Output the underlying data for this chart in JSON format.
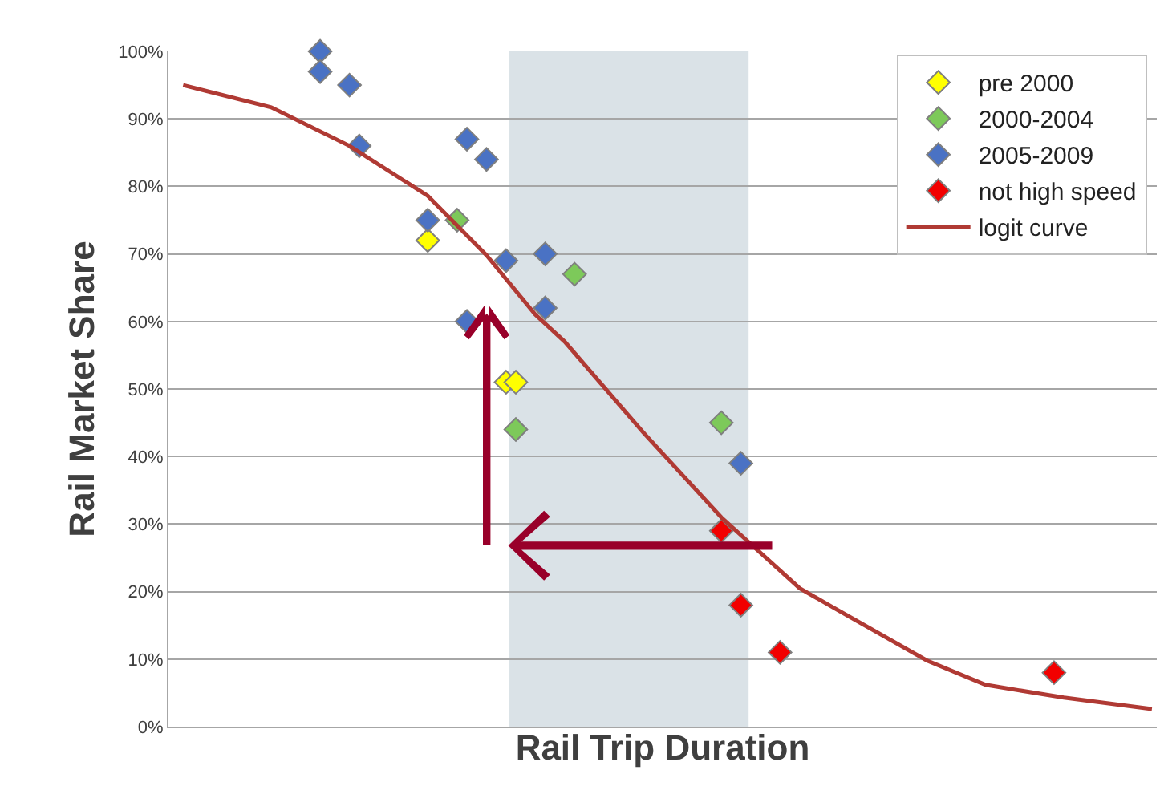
{
  "chart_data": {
    "type": "scatter",
    "xlabel": "Rail Trip Duration",
    "ylabel": "Rail Market Share",
    "categories": [
      null,
      null,
      null,
      null,
      null,
      null,
      null,
      null,
      null,
      null,
      null,
      null,
      null,
      null,
      null,
      null,
      null,
      null,
      null,
      null,
      null,
      null,
      null,
      null,
      null,
      null,
      null,
      null,
      null,
      null,
      null,
      null,
      null,
      null,
      null,
      null,
      null,
      null,
      null,
      null,
      null,
      null,
      null,
      null,
      null,
      null,
      null,
      null,
      null,
      null,
      null,
      null,
      null,
      null,
      null,
      null,
      null,
      null,
      null,
      null,
      null,
      null,
      null,
      null,
      null,
      null,
      null,
      null,
      null,
      null,
      null,
      null,
      null,
      null,
      null,
      null,
      null,
      null,
      null,
      null,
      null,
      null,
      null,
      null,
      null,
      null,
      null,
      null,
      null,
      null,
      null,
      null,
      null,
      null,
      null,
      null,
      null,
      null,
      null,
      null,
      null
    ],
    "ylim": [
      0,
      100
    ],
    "yticks": [
      {
        "value": 0,
        "label": "0%"
      },
      {
        "value": 10,
        "label": "10%"
      },
      {
        "value": 20,
        "label": "20%"
      },
      {
        "value": 30,
        "label": "30%"
      },
      {
        "value": 40,
        "label": "40%"
      },
      {
        "value": 50,
        "label": "50%"
      },
      {
        "value": 60,
        "label": "60%"
      },
      {
        "value": 70,
        "label": "70%"
      },
      {
        "value": 80,
        "label": "80%"
      },
      {
        "value": 90,
        "label": "90%"
      },
      {
        "value": 100,
        "label": "100%"
      }
    ],
    "grid": "y",
    "legend": "top right",
    "marker": "diamond",
    "series": [
      {
        "name": "pre 2000",
        "color": "#ffff00",
        "values": [
          null,
          null,
          null,
          null,
          null,
          null,
          null,
          null,
          null,
          null,
          null,
          null,
          null,
          null,
          null,
          null,
          null,
          null,
          null,
          null,
          null,
          null,
          null,
          null,
          null,
          null,
          72,
          null,
          null,
          null,
          null,
          null,
          null,
          null,
          51,
          51,
          null,
          null,
          null,
          null,
          null,
          null,
          null,
          null,
          null,
          null,
          null,
          null,
          null,
          null,
          null,
          null,
          null,
          null,
          null,
          null,
          null,
          null,
          null,
          null,
          null,
          null,
          null,
          null,
          null,
          null,
          null,
          null,
          null,
          null,
          null,
          null,
          null,
          null,
          null,
          null,
          null,
          null,
          null,
          null,
          null,
          null,
          null,
          null,
          null,
          null,
          null,
          null,
          null,
          null,
          null,
          null,
          null,
          null,
          null,
          null,
          null,
          null,
          null,
          null,
          null
        ]
      },
      {
        "name": "2000-2004",
        "color": "#7dc95a",
        "values": [
          null,
          null,
          null,
          null,
          null,
          null,
          null,
          null,
          null,
          null,
          null,
          null,
          null,
          null,
          null,
          null,
          null,
          null,
          null,
          null,
          null,
          null,
          null,
          null,
          null,
          null,
          null,
          null,
          null,
          75,
          null,
          null,
          null,
          null,
          null,
          44,
          null,
          null,
          null,
          null,
          null,
          67,
          null,
          null,
          null,
          null,
          null,
          null,
          null,
          null,
          null,
          null,
          null,
          null,
          null,
          null,
          45,
          null,
          null,
          null,
          null,
          null,
          null,
          null,
          null,
          null,
          null,
          null,
          null,
          null,
          null,
          null,
          null,
          null,
          null,
          null,
          null,
          null,
          null,
          null,
          null,
          null,
          null,
          null,
          null,
          null,
          null,
          null,
          null,
          null,
          null,
          null,
          null,
          null,
          null,
          null,
          null,
          null,
          null,
          null,
          null
        ]
      },
      {
        "name": "2005-2009",
        "color": "#4a72c4",
        "values": [
          null,
          null,
          null,
          null,
          null,
          null,
          null,
          null,
          null,
          null,
          null,
          null,
          null,
          null,
          null,
          100,
          null,
          null,
          95,
          86,
          null,
          null,
          null,
          null,
          null,
          null,
          75,
          null,
          null,
          null,
          87,
          null,
          84,
          null,
          69,
          null,
          null,
          null,
          70,
          null,
          null,
          null,
          null,
          null,
          null,
          null,
          null,
          null,
          null,
          null,
          null,
          null,
          null,
          null,
          null,
          null,
          null,
          null,
          39,
          null,
          null,
          null,
          null,
          null,
          null,
          null,
          null,
          null,
          null,
          null,
          null,
          null,
          null,
          null,
          null,
          null,
          null,
          null,
          null,
          null,
          null,
          null,
          null,
          null,
          null,
          null,
          null,
          null,
          null,
          null,
          null,
          null,
          null,
          null,
          null,
          null,
          null,
          null,
          null,
          null,
          null
        ]
      },
      {
        "color": "#4a72c4",
        "values": [
          null,
          null,
          null,
          null,
          null,
          null,
          null,
          null,
          null,
          null,
          null,
          null,
          null,
          null,
          null,
          97,
          null,
          null,
          null,
          null,
          null,
          null,
          null,
          null,
          null,
          null,
          null,
          null,
          null,
          null,
          60,
          null,
          null,
          null,
          null,
          null,
          null,
          null,
          62,
          null,
          null,
          null,
          null,
          null,
          null,
          null,
          null,
          null,
          null,
          null,
          null,
          null,
          null,
          null,
          null,
          null,
          null,
          null,
          null,
          null,
          null,
          null,
          null,
          null,
          null,
          null,
          null,
          null,
          null,
          null,
          null,
          null,
          null,
          null,
          null,
          null,
          null,
          null,
          null,
          null,
          null,
          null,
          null,
          null,
          null,
          null,
          null,
          null,
          null,
          null,
          null,
          null,
          null,
          null,
          null,
          null,
          null,
          null,
          null,
          null,
          null
        ]
      },
      {
        "name": "not high speed",
        "color": "#f20000",
        "values": [
          null,
          null,
          null,
          null,
          null,
          null,
          null,
          null,
          null,
          null,
          null,
          null,
          null,
          null,
          null,
          null,
          null,
          null,
          null,
          null,
          null,
          null,
          null,
          null,
          null,
          null,
          null,
          null,
          null,
          null,
          null,
          null,
          null,
          null,
          null,
          null,
          null,
          null,
          null,
          null,
          null,
          null,
          null,
          null,
          null,
          null,
          null,
          null,
          null,
          null,
          null,
          null,
          null,
          null,
          null,
          null,
          29,
          null,
          18,
          null,
          null,
          null,
          11,
          null,
          null,
          null,
          null,
          null,
          null,
          null,
          null,
          null,
          null,
          null,
          null,
          null,
          null,
          null,
          null,
          null,
          null,
          null,
          null,
          null,
          null,
          null,
          null,
          null,
          null,
          null,
          8,
          null,
          null,
          null,
          null,
          null,
          null,
          null,
          null,
          null,
          null
        ]
      },
      {
        "name": "logit curve",
        "type": "line",
        "marker": "none",
        "color": "#b03a34",
        "values": [
          null,
          95,
          null,
          null,
          null,
          null,
          null,
          null,
          null,
          null,
          91.7,
          null,
          null,
          null,
          null,
          null,
          null,
          null,
          86,
          null,
          null,
          null,
          null,
          null,
          null,
          null,
          78.6,
          null,
          null,
          null,
          null,
          null,
          69.8,
          null,
          null,
          null,
          null,
          61,
          null,
          null,
          57,
          null,
          null,
          null,
          null,
          null,
          null,
          null,
          43.6,
          null,
          null,
          null,
          null,
          null,
          null,
          null,
          31,
          null,
          null,
          null,
          null,
          null,
          null,
          null,
          20.5,
          null,
          null,
          18,
          null,
          null,
          null,
          null,
          null,
          null,
          null,
          null,
          null,
          9.8,
          null,
          null,
          null,
          null,
          null,
          6.2,
          null,
          null,
          null,
          null,
          null,
          null,
          null,
          4.3,
          null,
          null,
          null,
          null,
          null,
          null,
          null,
          null,
          2.6
        ]
      }
    ]
  }
}
